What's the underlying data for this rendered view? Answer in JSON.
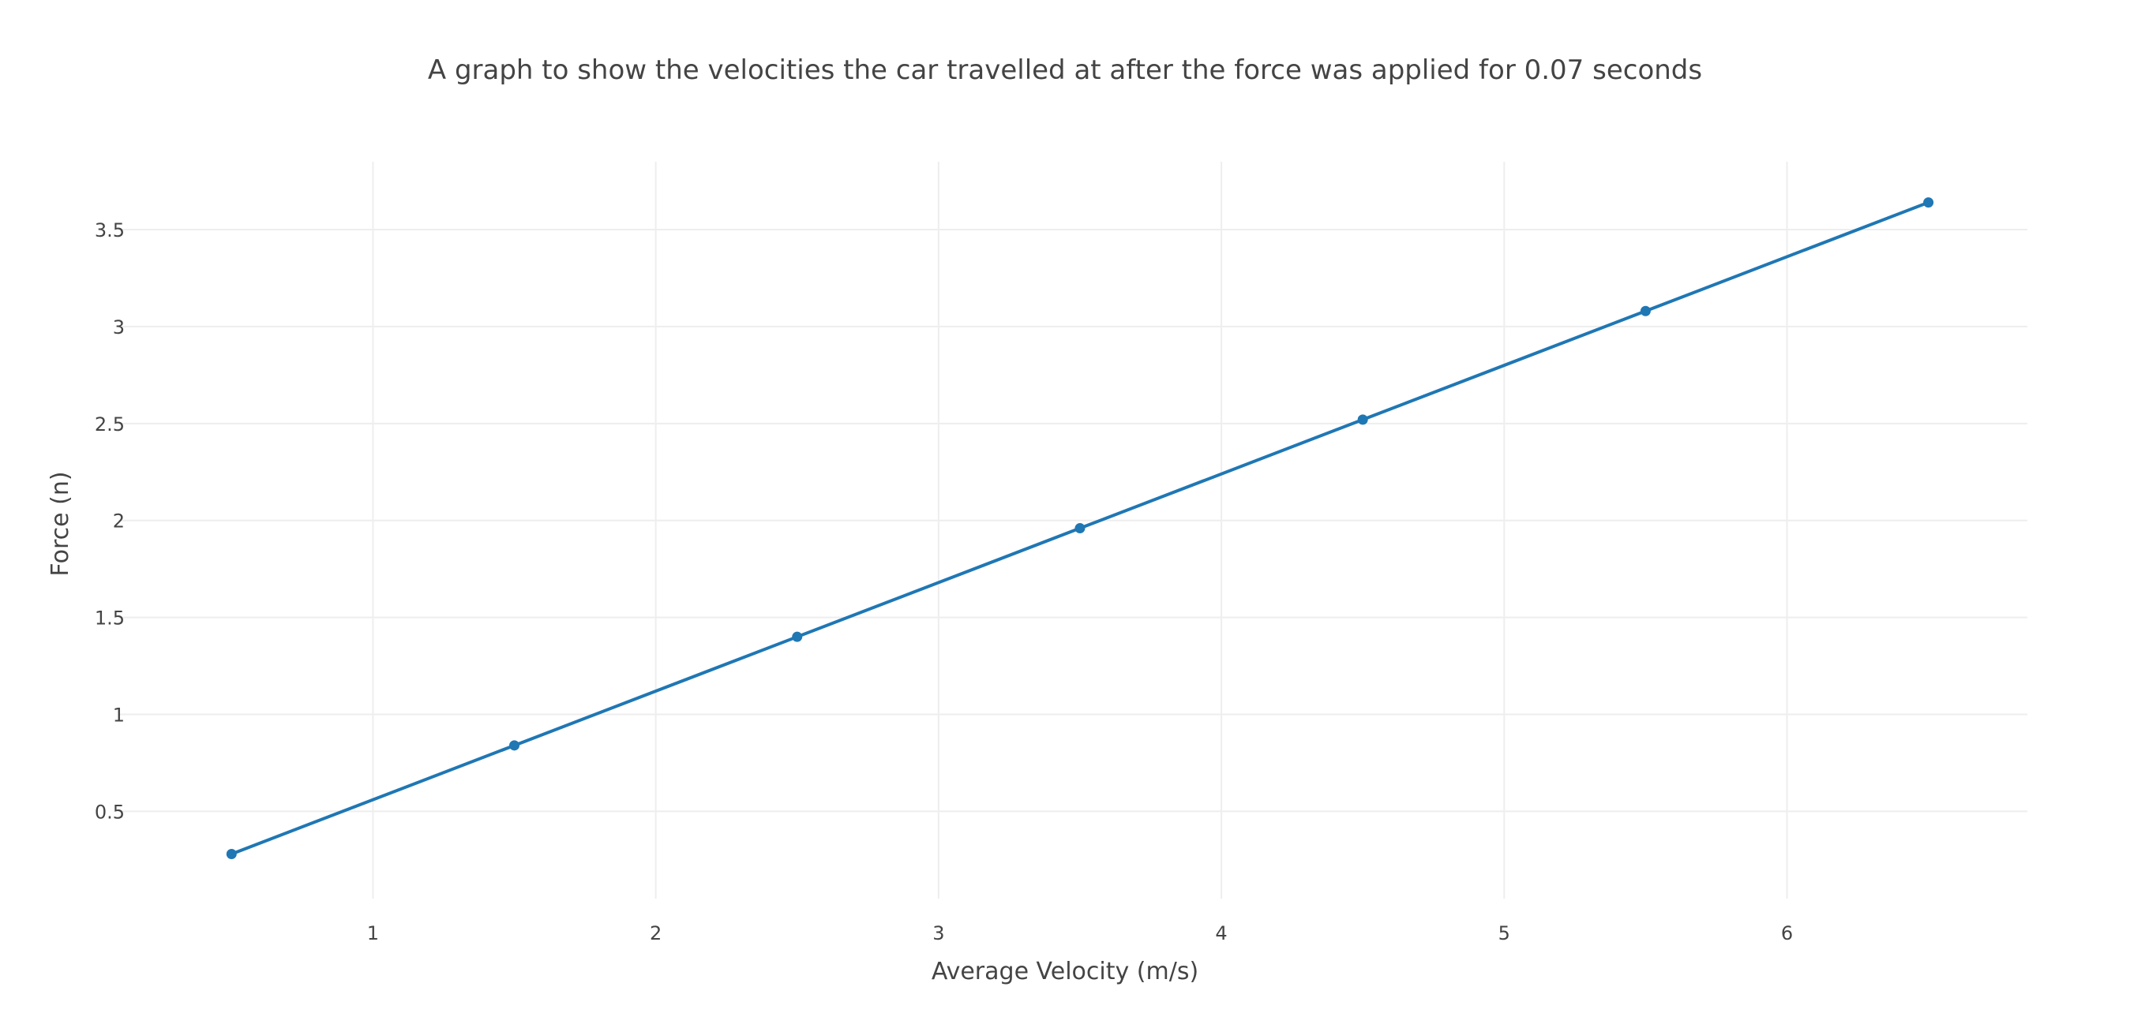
{
  "chart_data": {
    "type": "line",
    "title": "A graph to show the velocities the car travelled at after the force was applied for 0.07 seconds",
    "xlabel": "Average Velocity (m/s)",
    "ylabel": "Force (n)",
    "xlim": [
      0.1,
      6.85
    ],
    "ylim": [
      0.05,
      3.85
    ],
    "xticks": [
      1,
      2,
      3,
      4,
      5,
      6
    ],
    "xtick_labels": [
      "1",
      "2",
      "3",
      "4",
      "5",
      "6"
    ],
    "yticks": [
      0.5,
      1,
      1.5,
      2,
      2.5,
      3,
      3.5
    ],
    "ytick_labels": [
      "0.5",
      "1",
      "1.5",
      "2",
      "2.5",
      "3",
      "3.5"
    ],
    "grid": true,
    "series": [
      {
        "x": [
          0.5,
          1.5,
          2.5,
          3.5,
          4.5,
          5.5,
          6.5
        ],
        "y": [
          0.28,
          0.84,
          1.4,
          1.96,
          2.52,
          3.08,
          3.64
        ],
        "color": "#1f77b4",
        "mode": "lines+markers"
      }
    ]
  }
}
